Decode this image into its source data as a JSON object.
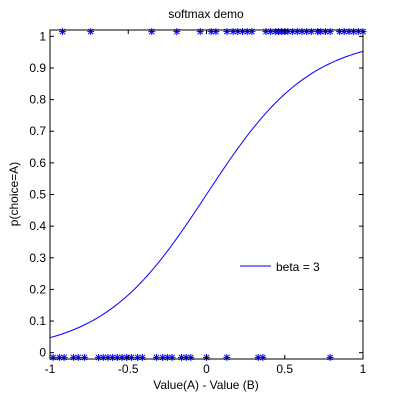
{
  "chart_data": {
    "type": "line",
    "title": "softmax demo",
    "xlabel": "Value(A) - Value (B)",
    "ylabel": "p(choice=A)",
    "xlim": [
      -1,
      1
    ],
    "ylim": [
      -0.02,
      1.02
    ],
    "xticks": [
      -1,
      -0.5,
      0,
      0.5,
      1
    ],
    "xtick_labels": [
      "-1",
      "-0.5",
      "0",
      "0.5",
      "1"
    ],
    "yticks": [
      0,
      0.1,
      0.2,
      0.3,
      0.4,
      0.5,
      0.6,
      0.7,
      0.8,
      0.9,
      1
    ],
    "ytick_labels": [
      "0",
      "0.1",
      "0.2",
      "0.3",
      "0.4",
      "0.5",
      "0.6",
      "0.7",
      "0.8",
      "0.9",
      "1"
    ],
    "grid": false,
    "legend": {
      "position": "center-right",
      "entries": [
        "beta = 3"
      ]
    },
    "curve": {
      "name": "beta = 3",
      "color": "#0000ff",
      "function": "softmax",
      "beta": 3
    },
    "choices": {
      "color": "#0000ff",
      "marker": "asterisk",
      "chose_a_y": 1.015,
      "chose_b_y": -0.015,
      "chose_a_x": [
        -0.92,
        -0.74,
        -0.35,
        -0.19,
        -0.04,
        0.03,
        0.06,
        0.13,
        0.17,
        0.2,
        0.23,
        0.26,
        0.29,
        0.38,
        0.41,
        0.44,
        0.46,
        0.48,
        0.5,
        0.52,
        0.55,
        0.58,
        0.61,
        0.64,
        0.67,
        0.71,
        0.73,
        0.76,
        0.79,
        0.85,
        0.88,
        0.91,
        0.94,
        0.97,
        1.0
      ],
      "chose_b_x": [
        -0.98,
        -0.94,
        -0.91,
        -0.85,
        -0.82,
        -0.78,
        -0.69,
        -0.66,
        -0.63,
        -0.6,
        -0.57,
        -0.54,
        -0.51,
        -0.48,
        -0.44,
        -0.41,
        -0.32,
        -0.28,
        -0.25,
        -0.22,
        -0.16,
        -0.13,
        -0.1,
        0.0,
        0.13,
        0.33,
        0.36,
        0.79
      ]
    }
  }
}
